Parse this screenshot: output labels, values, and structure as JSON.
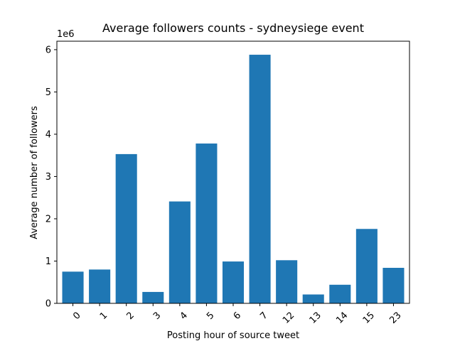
{
  "chart_data": {
    "type": "bar",
    "title": "Average followers counts - sydneysiege event",
    "xlabel": "Posting hour of source tweet",
    "ylabel": "Average number of followers",
    "y_offset_label": "1e6",
    "categories": [
      "0",
      "1",
      "2",
      "3",
      "4",
      "5",
      "6",
      "7",
      "12",
      "13",
      "14",
      "15",
      "23"
    ],
    "values": [
      750000,
      800000,
      3530000,
      270000,
      2410000,
      3780000,
      990000,
      5880000,
      1020000,
      210000,
      440000,
      1760000,
      840000
    ],
    "ylim": [
      0,
      6200000
    ],
    "yticks": [
      0,
      1000000,
      2000000,
      3000000,
      4000000,
      5000000,
      6000000
    ],
    "ytick_labels": [
      "0",
      "1",
      "2",
      "3",
      "4",
      "5",
      "6"
    ],
    "bar_color": "#1f77b4",
    "grid": false,
    "legend": "none"
  }
}
